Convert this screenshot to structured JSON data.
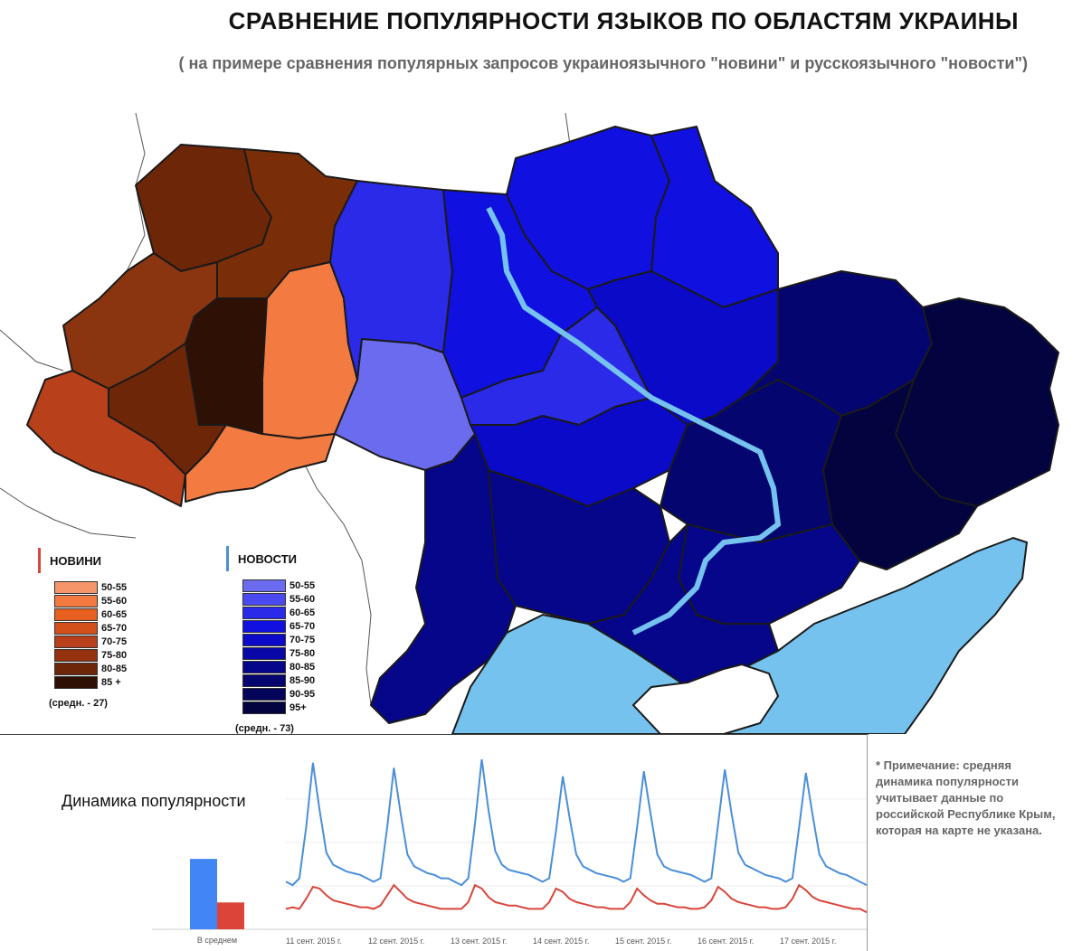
{
  "title": "СРАВНЕНИЕ ПОПУЛЯРНОСТИ ЯЗЫКОВ ПО ОБЛАСТЯМ УКРАИНЫ",
  "subtitle": "( на примере сравнения популярных запросов украиноязычного \"новини\" и русскоязычного \"новости\")",
  "legend_novyny": {
    "title": "НОВИНИ",
    "mark_color": "#d9463b",
    "ranges": [
      "50-55",
      "55-60",
      "60-65",
      "65-70",
      "70-75",
      "75-80",
      "80-85",
      "85 +"
    ],
    "colors": [
      "#f7956a",
      "#f37a40",
      "#e8601f",
      "#d4501a",
      "#b8401a",
      "#963210",
      "#6e2608",
      "#2e1004"
    ],
    "average": "(средн. - 27)"
  },
  "legend_novosti": {
    "title": "НОВОСТИ",
    "mark_color": "#4a90d9",
    "ranges": [
      "50-55",
      "55-60",
      "60-65",
      "65-70",
      "70-75",
      "75-80",
      "80-85",
      "85-90",
      "90-95",
      "95+"
    ],
    "colors": [
      "#6b6bf0",
      "#4a4af0",
      "#2a2ae8",
      "#1010e0",
      "#0a0ac8",
      "#0808a8",
      "#06068a",
      "#050570",
      "#04045a",
      "#030340"
    ],
    "average": "(средн. - 73)"
  },
  "colors": {
    "sea": "#74c2ed",
    "border": "#1a1a1a"
  },
  "dynamics": {
    "title": "Динамика популярности",
    "avg_label": "В среднем",
    "avg_values": {
      "novosti": 73,
      "novyny": 27
    },
    "avg_colors": {
      "novosti": "#4285f4",
      "novyny": "#db4437"
    },
    "dates": [
      "11 сент. 2015 г.",
      "12 сент. 2015 г.",
      "13 сент. 2015 г.",
      "14 сент. 2015 г.",
      "15 сент. 2015 г.",
      "16 сент. 2015 г.",
      "17 сент. 2015 г."
    ],
    "novosti_series": [
      28,
      26,
      30,
      60,
      98,
      70,
      45,
      38,
      36,
      34,
      33,
      32,
      30,
      28,
      30,
      60,
      95,
      68,
      44,
      37,
      35,
      33,
      32,
      30,
      30,
      28,
      26,
      30,
      62,
      100,
      70,
      46,
      38,
      35,
      34,
      33,
      32,
      30,
      28,
      30,
      58,
      90,
      66,
      44,
      37,
      35,
      33,
      32,
      31,
      30,
      28,
      30,
      60,
      93,
      68,
      44,
      37,
      35,
      34,
      33,
      32,
      30,
      28,
      30,
      62,
      94,
      68,
      45,
      38,
      36,
      34,
      32,
      31,
      30,
      28,
      30,
      60,
      92,
      67,
      44,
      37,
      35,
      33,
      32,
      30,
      28,
      26
    ],
    "novyny_series": [
      12,
      13,
      12,
      18,
      25,
      24,
      20,
      17,
      16,
      15,
      14,
      13,
      13,
      12,
      14,
      20,
      26,
      22,
      18,
      16,
      15,
      14,
      13,
      12,
      12,
      12,
      12,
      16,
      26,
      24,
      19,
      16,
      15,
      14,
      14,
      13,
      12,
      12,
      12,
      16,
      24,
      22,
      18,
      16,
      15,
      14,
      13,
      13,
      12,
      12,
      12,
      16,
      24,
      20,
      17,
      15,
      15,
      14,
      13,
      13,
      12,
      12,
      13,
      17,
      25,
      22,
      18,
      16,
      15,
      14,
      13,
      13,
      12,
      12,
      13,
      18,
      26,
      23,
      19,
      17,
      16,
      15,
      14,
      13,
      12,
      12,
      10
    ]
  },
  "note": "* Примечание: средняя динамика популярности учитывает данные по российской Республике Крым, которая на карте не указана."
}
